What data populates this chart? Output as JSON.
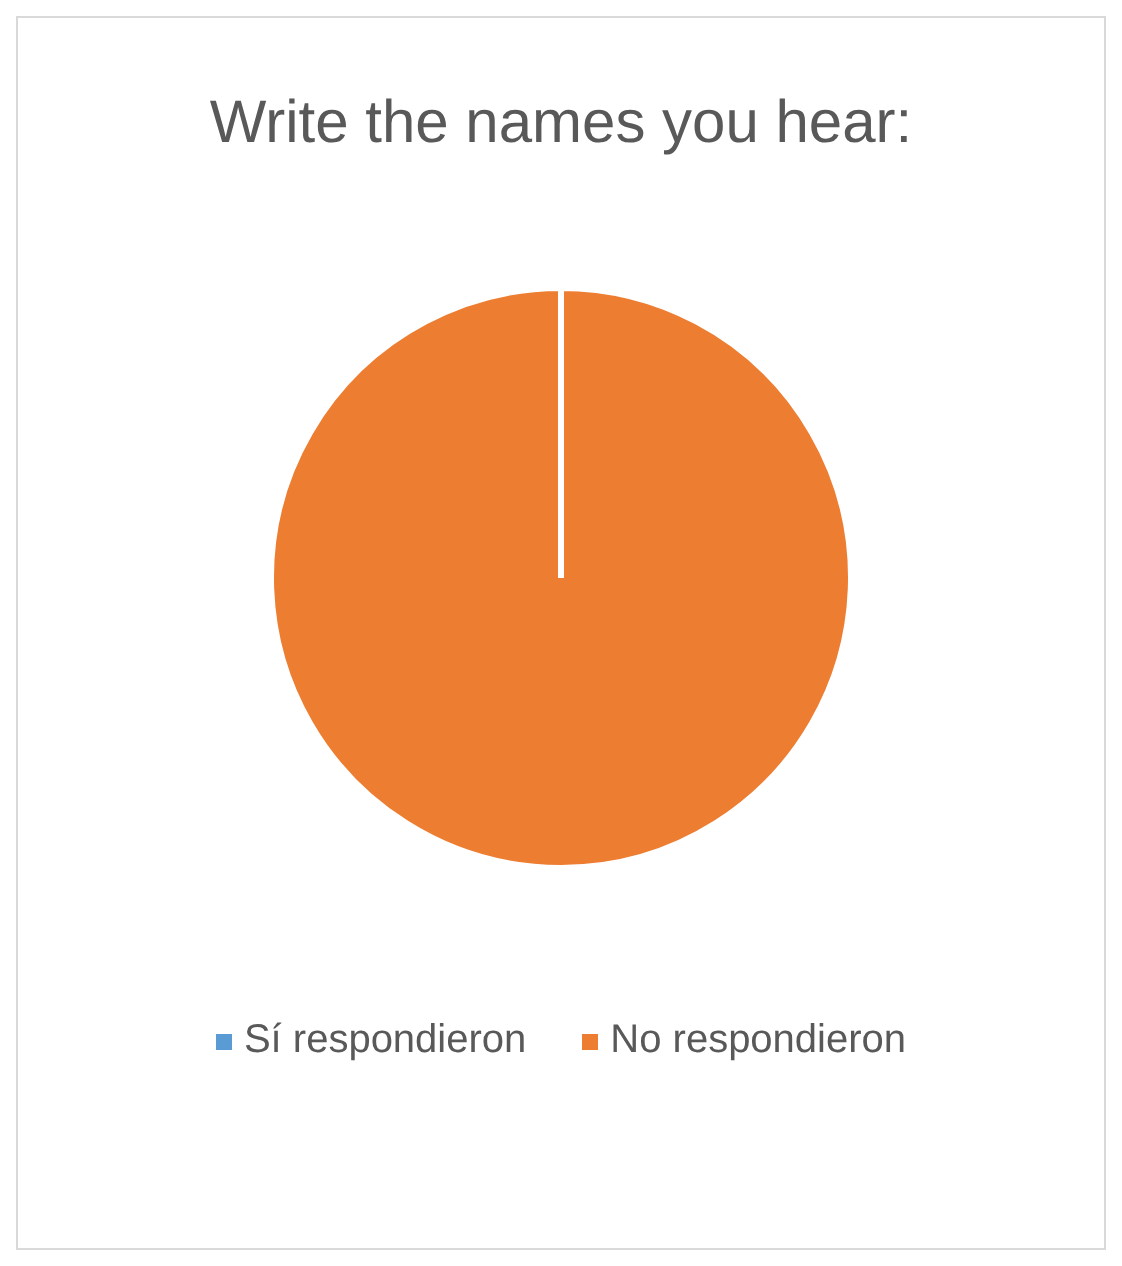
{
  "chart_data": {
    "type": "pie",
    "title": "Write the names you hear:",
    "categories": [
      "Sí respondieron",
      "No respondieron"
    ],
    "values": [
      0,
      100
    ],
    "colors": [
      "#5b9bd5",
      "#ed7d31"
    ],
    "legend": "bottom"
  }
}
